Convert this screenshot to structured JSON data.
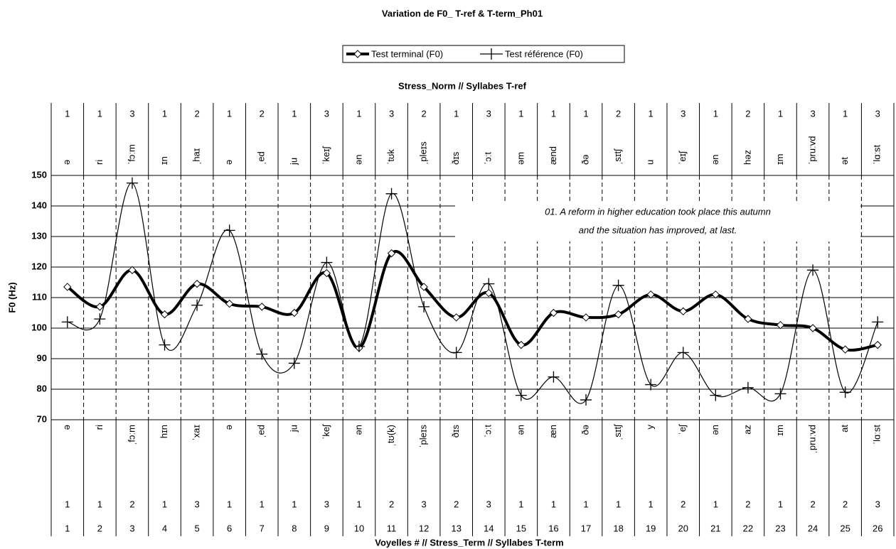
{
  "chart_data": {
    "type": "line",
    "title": "Variation de F0_ T-ref & T-term_Ph01",
    "ylabel": "F0 (Hz)",
    "top_header": "Stress_Norm // Syllabes T-ref",
    "xlabel": "Voyelles # // Stress_Term // Syllabes T-term",
    "annotation": [
      "01. A reform in higher education took place this autumn",
      "and the situation has improved, at last."
    ],
    "categories": [
      1,
      2,
      3,
      4,
      5,
      6,
      7,
      8,
      9,
      10,
      11,
      12,
      13,
      14,
      15,
      16,
      17,
      18,
      19,
      20,
      21,
      22,
      23,
      24,
      25,
      26
    ],
    "series": [
      {
        "name": "Test terminal (F0)",
        "color": "#000000",
        "values": [
          113.5,
          107,
          119,
          104.5,
          114.5,
          108,
          107,
          105,
          118,
          93.5,
          124.5,
          113.5,
          103.5,
          111.5,
          94.5,
          105,
          103.5,
          104.5,
          111,
          105.5,
          111,
          103,
          101,
          100,
          93,
          94.5
        ]
      },
      {
        "name": "Test référence (F0)",
        "color": "#000000",
        "values": [
          102,
          103,
          147.5,
          94.5,
          107.5,
          132,
          91.5,
          88.5,
          121.5,
          94,
          144,
          107,
          92,
          114.5,
          78,
          84,
          76.5,
          114,
          81.5,
          92,
          78,
          80.5,
          78.5,
          119,
          79,
          102
        ]
      }
    ],
    "top_rows": {
      "stress": [
        1,
        1,
        3,
        1,
        2,
        1,
        2,
        1,
        3,
        1,
        3,
        2,
        1,
        3,
        1,
        1,
        1,
        2,
        1,
        3,
        1,
        2,
        1,
        3,
        1,
        3
      ],
      "syllables": [
        "ə",
        "ri",
        "ˈfɔːm",
        "ɪn",
        "ˌhaɪ",
        "ə",
        "ˌed",
        "ju",
        "ˈkeɪʃ",
        "ən",
        "ˈtʊk",
        "ˌpleɪs",
        "ðɪs",
        "ˈɔːt",
        "əm",
        "ænd",
        "ðə",
        "ˌsɪtʃ",
        "u",
        "ˈeɪʃ",
        "ən",
        "həz",
        "ɪm",
        "ˈpruːvd",
        "ət",
        "ˈlɑːst"
      ]
    },
    "bottom_rows": {
      "syllables": [
        "ə",
        "ri",
        "ˌfɔːm",
        "hɪn",
        "ˈxaɪ",
        "ə",
        "ˌed",
        "ju",
        "ˈkeʃ",
        "ən",
        "ˌtʊ(k)",
        "ˈpleɪs",
        "ðɪs",
        "ˈɔːt",
        "ən",
        "æn",
        "ðə",
        "ˌsɪtʃ",
        "y",
        "ˈeʃ",
        "ən",
        "az",
        "ɪm",
        "ˌpruːvd",
        "at",
        "ˈlɑːst"
      ],
      "stress": [
        1,
        1,
        2,
        1,
        3,
        1,
        1,
        1,
        3,
        1,
        2,
        3,
        2,
        3,
        1,
        1,
        1,
        1,
        1,
        2,
        1,
        2,
        1,
        2,
        2,
        3
      ]
    },
    "ylim": [
      70,
      150
    ],
    "yticks": [
      70,
      80,
      90,
      100,
      110,
      120,
      130,
      140,
      150
    ],
    "grid": true
  }
}
